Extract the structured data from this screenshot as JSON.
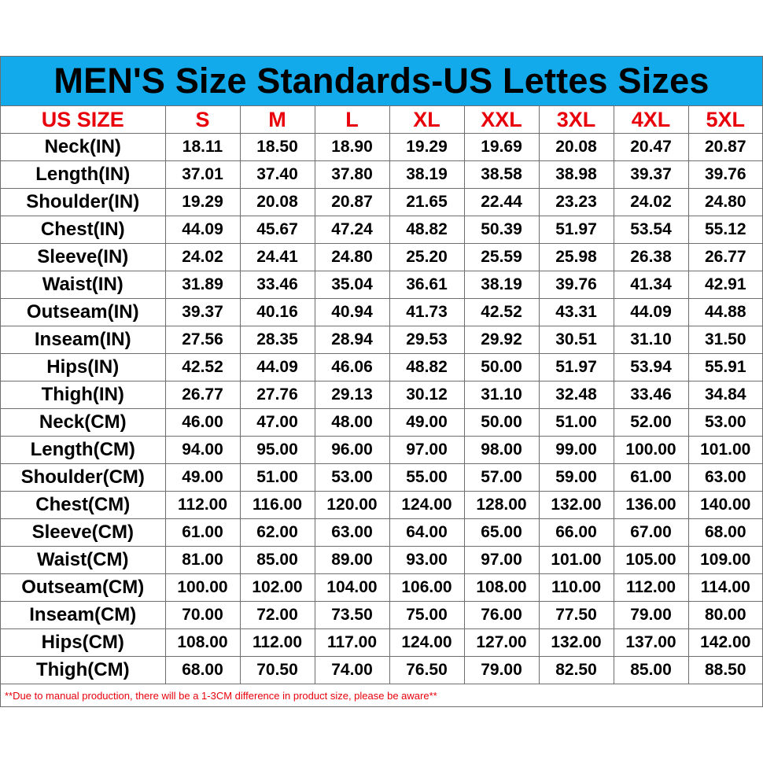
{
  "title": "MEN'S Size Standards-US Lettes Sizes",
  "header": {
    "label": "US SIZE",
    "sizes": [
      "S",
      "M",
      "L",
      "XL",
      "XXL",
      "3XL",
      "4XL",
      "5XL"
    ]
  },
  "rows": [
    {
      "label": "Neck(IN)",
      "values": [
        "18.11",
        "18.50",
        "18.90",
        "19.29",
        "19.69",
        "20.08",
        "20.47",
        "20.87"
      ]
    },
    {
      "label": "Length(IN)",
      "values": [
        "37.01",
        "37.40",
        "37.80",
        "38.19",
        "38.58",
        "38.98",
        "39.37",
        "39.76"
      ]
    },
    {
      "label": "Shoulder(IN)",
      "values": [
        "19.29",
        "20.08",
        "20.87",
        "21.65",
        "22.44",
        "23.23",
        "24.02",
        "24.80"
      ]
    },
    {
      "label": "Chest(IN)",
      "values": [
        "44.09",
        "45.67",
        "47.24",
        "48.82",
        "50.39",
        "51.97",
        "53.54",
        "55.12"
      ]
    },
    {
      "label": "Sleeve(IN)",
      "values": [
        "24.02",
        "24.41",
        "24.80",
        "25.20",
        "25.59",
        "25.98",
        "26.38",
        "26.77"
      ]
    },
    {
      "label": "Waist(IN)",
      "values": [
        "31.89",
        "33.46",
        "35.04",
        "36.61",
        "38.19",
        "39.76",
        "41.34",
        "42.91"
      ]
    },
    {
      "label": "Outseam(IN)",
      "values": [
        "39.37",
        "40.16",
        "40.94",
        "41.73",
        "42.52",
        "43.31",
        "44.09",
        "44.88"
      ]
    },
    {
      "label": "Inseam(IN)",
      "values": [
        "27.56",
        "28.35",
        "28.94",
        "29.53",
        "29.92",
        "30.51",
        "31.10",
        "31.50"
      ]
    },
    {
      "label": "Hips(IN)",
      "values": [
        "42.52",
        "44.09",
        "46.06",
        "48.82",
        "50.00",
        "51.97",
        "53.94",
        "55.91"
      ]
    },
    {
      "label": "Thigh(IN)",
      "values": [
        "26.77",
        "27.76",
        "29.13",
        "30.12",
        "31.10",
        "32.48",
        "33.46",
        "34.84"
      ]
    },
    {
      "label": "Neck(CM)",
      "values": [
        "46.00",
        "47.00",
        "48.00",
        "49.00",
        "50.00",
        "51.00",
        "52.00",
        "53.00"
      ]
    },
    {
      "label": "Length(CM)",
      "values": [
        "94.00",
        "95.00",
        "96.00",
        "97.00",
        "98.00",
        "99.00",
        "100.00",
        "101.00"
      ]
    },
    {
      "label": "Shoulder(CM)",
      "values": [
        "49.00",
        "51.00",
        "53.00",
        "55.00",
        "57.00",
        "59.00",
        "61.00",
        "63.00"
      ]
    },
    {
      "label": "Chest(CM)",
      "values": [
        "112.00",
        "116.00",
        "120.00",
        "124.00",
        "128.00",
        "132.00",
        "136.00",
        "140.00"
      ]
    },
    {
      "label": "Sleeve(CM)",
      "values": [
        "61.00",
        "62.00",
        "63.00",
        "64.00",
        "65.00",
        "66.00",
        "67.00",
        "68.00"
      ]
    },
    {
      "label": "Waist(CM)",
      "values": [
        "81.00",
        "85.00",
        "89.00",
        "93.00",
        "97.00",
        "101.00",
        "105.00",
        "109.00"
      ]
    },
    {
      "label": "Outseam(CM)",
      "values": [
        "100.00",
        "102.00",
        "104.00",
        "106.00",
        "108.00",
        "110.00",
        "112.00",
        "114.00"
      ]
    },
    {
      "label": "Inseam(CM)",
      "values": [
        "70.00",
        "72.00",
        "73.50",
        "75.00",
        "76.00",
        "77.50",
        "79.00",
        "80.00"
      ]
    },
    {
      "label": "Hips(CM)",
      "values": [
        "108.00",
        "112.00",
        "117.00",
        "124.00",
        "127.00",
        "132.00",
        "137.00",
        "142.00"
      ]
    },
    {
      "label": "Thigh(CM)",
      "values": [
        "68.00",
        "70.50",
        "74.00",
        "76.50",
        "79.00",
        "82.50",
        "85.00",
        "88.50"
      ]
    }
  ],
  "note": "**Due to manual production, there will be a 1-3CM difference in product size, please be aware**",
  "colors": {
    "title_bg": "#13aaeb",
    "header_text": "#e8000b",
    "note_text": "#e8000b",
    "grid": "#6e6e6e"
  }
}
